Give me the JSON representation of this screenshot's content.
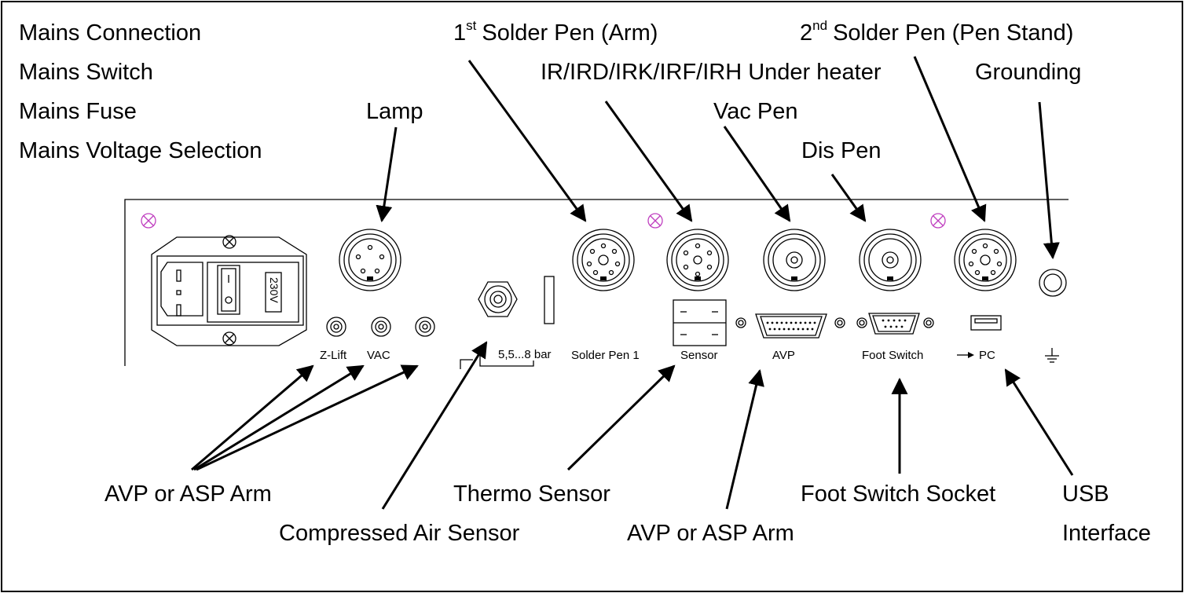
{
  "colors": {
    "line": "#000000",
    "screw_mark": "#c040c0",
    "background": "#ffffff"
  },
  "callouts": {
    "mains_connection": "Mains Connection",
    "mains_switch": "Mains Switch",
    "mains_fuse": "Mains Fuse",
    "mains_voltage_selection": "Mains Voltage Selection",
    "lamp": "Lamp",
    "solder_pen_1_num": "1",
    "solder_pen_1_sup": "st",
    "solder_pen_1_rest": "Solder Pen (Arm)",
    "under_heater": "IR/IRD/IRK/IRF/IRH Under heater",
    "vac_pen": "Vac Pen",
    "dis_pen": "Dis Pen",
    "solder_pen_2_num": "2",
    "solder_pen_2_sup": "nd",
    "solder_pen_2_rest": "Solder Pen (Pen Stand)",
    "grounding": "Grounding",
    "avp_asp_arm_left": "AVP or ASP Arm",
    "compressed_air_sensor": "Compressed Air Sensor",
    "thermo_sensor": "Thermo Sensor",
    "avp_asp_arm_center": "AVP or ASP Arm",
    "foot_switch_socket": "Foot Switch Socket",
    "usb_line1": "USB",
    "usb_line2": "Interface"
  },
  "panel_labels": {
    "voltage": "230V",
    "z_lift": "Z-Lift",
    "vac": "VAC",
    "pressure": "5,5...8 bar",
    "solder_pen_1": "Solder Pen 1",
    "sensor": "Sensor",
    "avp": "AVP",
    "foot_switch": "Foot Switch",
    "pc": "PC"
  },
  "icons": {
    "screw": "screw-icon",
    "ground": "ground-symbol-icon",
    "usb": "usb-port-icon",
    "pc_arrow": "arrow-icon"
  }
}
